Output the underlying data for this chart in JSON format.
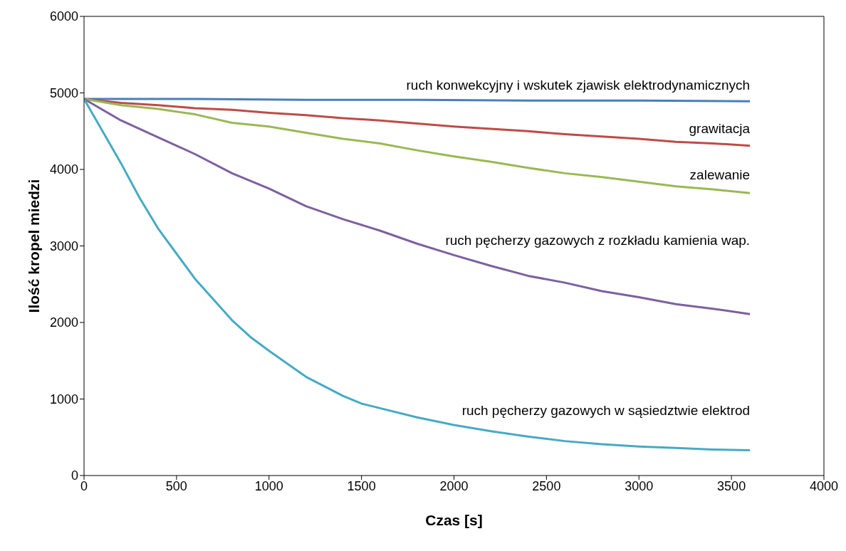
{
  "chart_data": {
    "type": "line",
    "xlabel": "Czas   [s]",
    "ylabel": "Ilość kropel miedzi",
    "xlim": [
      0,
      4000
    ],
    "xticks": [
      0,
      500,
      1000,
      1500,
      2000,
      2500,
      3000,
      3500,
      4000
    ],
    "ylim": [
      0,
      6000
    ],
    "yticks": [
      0,
      1000,
      2000,
      3000,
      4000,
      5000,
      6000
    ],
    "grid": false,
    "legend": false,
    "marker": "none",
    "line_style": "solid",
    "series": [
      {
        "name": "ruch konwekcyjny i wskutek zjawisk elektrodynamicznych",
        "color": "#4a7ebb",
        "x": [
          0,
          600,
          1200,
          1800,
          2400,
          3000,
          3600
        ],
        "values": [
          4920,
          4920,
          4910,
          4910,
          4900,
          4900,
          4890
        ]
      },
      {
        "name": "grawitacja",
        "color": "#be4b48",
        "x": [
          0,
          200,
          400,
          600,
          800,
          1000,
          1200,
          1400,
          1600,
          1800,
          2000,
          2200,
          2400,
          2600,
          2800,
          3000,
          3200,
          3400,
          3600
        ],
        "values": [
          4920,
          4870,
          4840,
          4800,
          4780,
          4740,
          4710,
          4670,
          4640,
          4600,
          4560,
          4530,
          4500,
          4460,
          4430,
          4400,
          4360,
          4340,
          4310
        ]
      },
      {
        "name": "zalewanie",
        "color": "#98b954",
        "x": [
          0,
          200,
          400,
          600,
          800,
          1000,
          1200,
          1400,
          1600,
          1800,
          2000,
          2200,
          2400,
          2600,
          2800,
          3000,
          3200,
          3400,
          3600
        ],
        "values": [
          4920,
          4840,
          4790,
          4720,
          4610,
          4560,
          4480,
          4400,
          4340,
          4250,
          4170,
          4100,
          4020,
          3950,
          3900,
          3840,
          3780,
          3740,
          3690
        ]
      },
      {
        "name": "ruch pęcherzy gazowych z rozkładu kamienia wap.",
        "color": "#7d60a0",
        "x": [
          0,
          200,
          400,
          600,
          800,
          1000,
          1200,
          1400,
          1600,
          1800,
          2000,
          2200,
          2400,
          2600,
          2800,
          3000,
          3200,
          3400,
          3600
        ],
        "values": [
          4920,
          4640,
          4420,
          4200,
          3950,
          3750,
          3520,
          3350,
          3200,
          3030,
          2880,
          2740,
          2610,
          2520,
          2410,
          2330,
          2240,
          2180,
          2110
        ]
      },
      {
        "name": "ruch pęcherzy gazowych w sąsiedztwie elektrod",
        "color": "#46aac5",
        "x": [
          0,
          100,
          200,
          300,
          400,
          600,
          800,
          900,
          1000,
          1200,
          1400,
          1500,
          1600,
          1800,
          2000,
          2200,
          2400,
          2600,
          2800,
          3000,
          3200,
          3400,
          3600
        ],
        "values": [
          4920,
          4500,
          4080,
          3630,
          3230,
          2570,
          2030,
          1810,
          1630,
          1290,
          1040,
          940,
          880,
          760,
          660,
          580,
          510,
          450,
          410,
          380,
          360,
          340,
          330
        ]
      }
    ]
  }
}
